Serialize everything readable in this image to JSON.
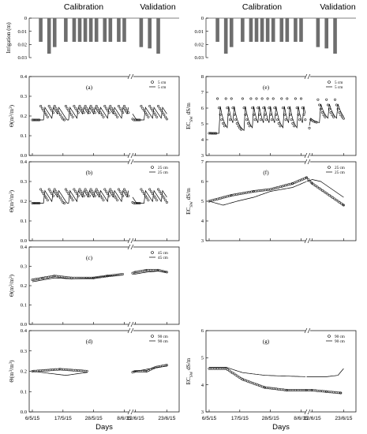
{
  "headers": {
    "left_calibration": "Calibration",
    "left_validation": "Validation",
    "right_calibration": "Calibration",
    "right_validation": "Validation"
  },
  "x_axis": {
    "label": "Days",
    "tick_labels": [
      "6/5/15",
      "17/5/15",
      "28/5/15",
      "8/6/15",
      "12/6/15",
      "23/6/15"
    ],
    "tick_days": [
      0,
      11,
      22,
      33,
      37,
      48
    ]
  },
  "colors": {
    "observed": "#1a1a1a",
    "simulated": "#000000",
    "bar": "#6e6e6e"
  },
  "chart_data": [
    {
      "id": "irrigation-left",
      "type": "bar",
      "ylabel": "Irrigation (m)",
      "ylim": [
        0,
        0.03
      ],
      "yticks": [
        0,
        0.01,
        0.02,
        0.03
      ],
      "inverted": true,
      "days": [
        3,
        6,
        8,
        12,
        15,
        17,
        19,
        21,
        23,
        26,
        28,
        31,
        33,
        39,
        42,
        45
      ],
      "values": [
        0.018,
        0.027,
        0.022,
        0.018,
        0.018,
        0.018,
        0.018,
        0.018,
        0.018,
        0.018,
        0.018,
        0.018,
        0.018,
        0.022,
        0.023,
        0.027
      ]
    },
    {
      "id": "irrigation-right",
      "type": "bar",
      "ylabel": "",
      "ylim": [
        0,
        0.03
      ],
      "yticks": [
        0,
        0.01,
        0.02,
        0.03
      ],
      "inverted": true,
      "days": [
        3,
        6,
        8,
        12,
        15,
        17,
        19,
        21,
        23,
        26,
        28,
        31,
        33,
        39,
        42,
        45
      ],
      "values": [
        0.018,
        0.027,
        0.022,
        0.018,
        0.018,
        0.018,
        0.018,
        0.018,
        0.018,
        0.018,
        0.018,
        0.018,
        0.018,
        0.022,
        0.023,
        0.027
      ]
    },
    {
      "id": "a",
      "type": "scatter",
      "panel_label": "(a)",
      "ylabel": "Θ(m3/m3)",
      "ylim": [
        0,
        0.4
      ],
      "yticks": [
        "0.0",
        "0.1",
        "0.2",
        "0.3",
        "0.4"
      ],
      "legend": [
        "5 cm",
        "5 cm"
      ],
      "base": 0.18,
      "peak": 0.25,
      "pattern": "saw",
      "sim_shift": 1.2
    },
    {
      "id": "b",
      "type": "scatter",
      "panel_label": "(b)",
      "ylabel": "Θ(m3/m3)",
      "ylim": [
        0,
        0.4
      ],
      "yticks": [
        "0.0",
        "0.1",
        "0.2",
        "0.3",
        "0.4"
      ],
      "legend": [
        "25 cm",
        "25 cm"
      ],
      "base": 0.19,
      "peak": 0.26,
      "pattern": "saw",
      "sim_shift": 1.2
    },
    {
      "id": "c",
      "type": "scatter",
      "panel_label": "(c)",
      "ylabel": "Θ(m3/m3)",
      "ylim": [
        0,
        0.4
      ],
      "yticks": [
        "0.0",
        "0.1",
        "0.2",
        "0.3",
        "0.4"
      ],
      "legend": [
        "45 cm",
        "45 cm"
      ],
      "obs_pts": [
        [
          0,
          0.23
        ],
        [
          4,
          0.24
        ],
        [
          8,
          0.25
        ],
        [
          14,
          0.24
        ],
        [
          22,
          0.24
        ],
        [
          27,
          0.25
        ],
        [
          33,
          0.26
        ],
        [
          36,
          0.265
        ],
        [
          37,
          0.27
        ],
        [
          41,
          0.28
        ],
        [
          45,
          0.28
        ],
        [
          48,
          0.27
        ]
      ],
      "sim_pts": [
        [
          0,
          0.22
        ],
        [
          4,
          0.23
        ],
        [
          8,
          0.24
        ],
        [
          14,
          0.235
        ],
        [
          22,
          0.24
        ],
        [
          27,
          0.25
        ],
        [
          33,
          0.255
        ],
        [
          36,
          0.26
        ],
        [
          37,
          0.26
        ],
        [
          41,
          0.27
        ],
        [
          45,
          0.275
        ],
        [
          48,
          0.27
        ]
      ]
    },
    {
      "id": "d",
      "type": "scatter",
      "panel_label": "(d)",
      "ylabel": "Θ(m3/m3)",
      "ylim": [
        0,
        0.4
      ],
      "yticks": [
        "0.0",
        "0.1",
        "0.2",
        "0.3",
        "0.4"
      ],
      "legend": [
        "90 cm",
        "90 cm"
      ],
      "obs_pts": [
        [
          0,
          0.2
        ],
        [
          10,
          0.21
        ],
        [
          20,
          0.2
        ],
        [
          36,
          0.195
        ],
        [
          37,
          0.2
        ],
        [
          41,
          0.2
        ],
        [
          44,
          0.22
        ],
        [
          48,
          0.23
        ]
      ],
      "sim_pts": [
        [
          0,
          0.2
        ],
        [
          6,
          0.19
        ],
        [
          12,
          0.18
        ],
        [
          20,
          0.195
        ],
        [
          36,
          0.2
        ],
        [
          37,
          0.2
        ],
        [
          41,
          0.21
        ],
        [
          45,
          0.22
        ],
        [
          48,
          0.225
        ]
      ]
    },
    {
      "id": "e",
      "type": "scatter",
      "panel_label": "(e)",
      "ylabel": "ECsw dS/m",
      "ylim": [
        3,
        8
      ],
      "yticks": [
        "3",
        "4",
        "5",
        "6",
        "7",
        "8"
      ],
      "legend": [
        "5 cm",
        "5 cm"
      ],
      "base": 4.4,
      "peak": 6.6,
      "pattern": "spike",
      "sim_shift": 0.6
    },
    {
      "id": "f",
      "type": "scatter",
      "panel_label": "(f)",
      "ylabel": "ECsw dS/m",
      "ylim": [
        3,
        7
      ],
      "yticks": [
        "3",
        "4",
        "5",
        "6",
        "7"
      ],
      "legend": [
        "25 cm",
        "25 cm"
      ],
      "obs_pts": [
        [
          0,
          5.0
        ],
        [
          8,
          5.3
        ],
        [
          16,
          5.5
        ],
        [
          22,
          5.6
        ],
        [
          30,
          5.9
        ],
        [
          35,
          6.2
        ],
        [
          37,
          5.9
        ],
        [
          40,
          5.6
        ],
        [
          43,
          5.3
        ],
        [
          46,
          5.0
        ],
        [
          48,
          4.8
        ]
      ],
      "sim_pts": [
        [
          0,
          5.0
        ],
        [
          5,
          4.8
        ],
        [
          10,
          5.0
        ],
        [
          16,
          5.2
        ],
        [
          22,
          5.5
        ],
        [
          30,
          5.7
        ],
        [
          35,
          6.0
        ],
        [
          37,
          6.1
        ],
        [
          40,
          6.0
        ],
        [
          44,
          5.6
        ],
        [
          48,
          5.2
        ]
      ]
    },
    {
      "id": "g",
      "type": "scatter",
      "panel_label": "(g)",
      "ylabel": "ECsw dS/m",
      "ylim": [
        3,
        6
      ],
      "yticks": [
        "3",
        "4",
        "5",
        "6"
      ],
      "legend": [
        "90 cm",
        "90 cm"
      ],
      "obs_pts": [
        [
          0,
          4.6
        ],
        [
          6,
          4.6
        ],
        [
          12,
          4.2
        ],
        [
          20,
          3.9
        ],
        [
          28,
          3.8
        ],
        [
          35,
          3.8
        ],
        [
          37,
          3.8
        ],
        [
          42,
          3.75
        ],
        [
          47,
          3.7
        ]
      ],
      "sim_pts": [
        [
          0,
          4.65
        ],
        [
          6,
          4.65
        ],
        [
          12,
          4.45
        ],
        [
          20,
          4.35
        ],
        [
          28,
          4.32
        ],
        [
          35,
          4.3
        ],
        [
          37,
          4.3
        ],
        [
          42,
          4.3
        ],
        [
          46,
          4.35
        ],
        [
          48,
          4.6
        ]
      ]
    }
  ]
}
